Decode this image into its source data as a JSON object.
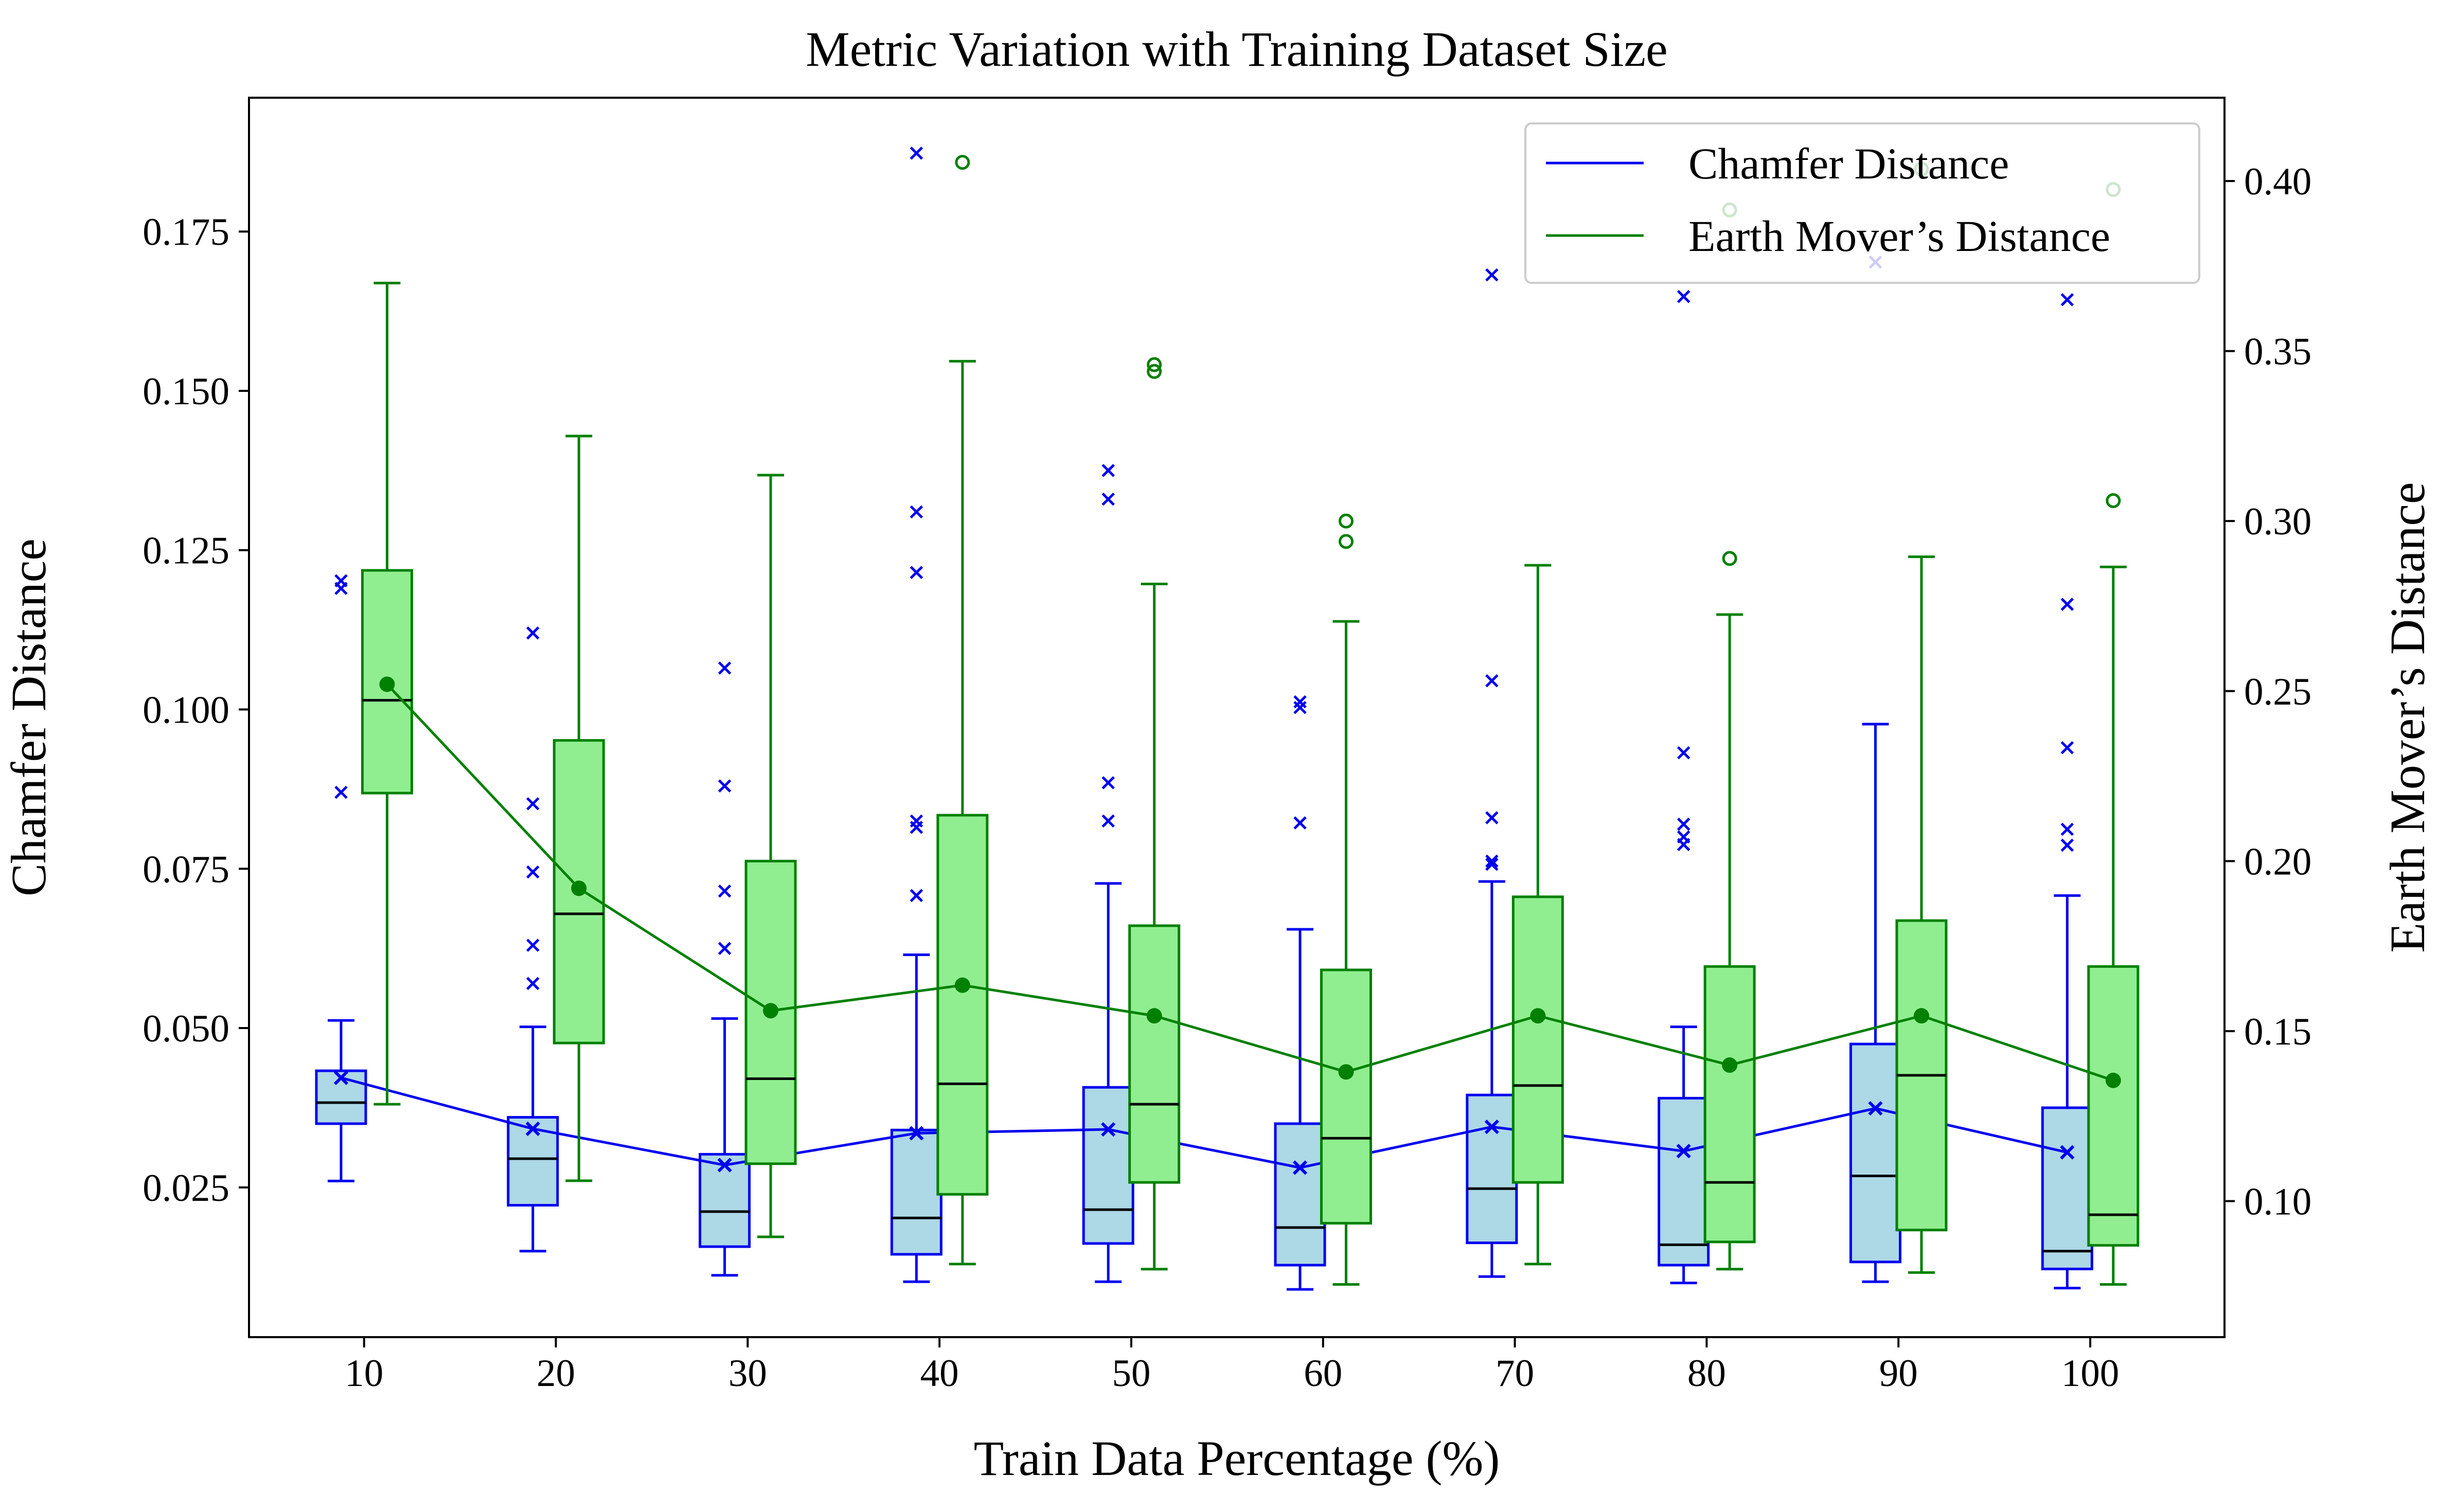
{
  "chart_data": {
    "type": "box",
    "title": "Metric Variation with Training Dataset Size",
    "xlabel": "Train Data Percentage (%)",
    "ylabel_left": "Chamfer Distance",
    "ylabel_right": "Earth Mover’s Distance",
    "x_ticks": [
      10,
      20,
      30,
      40,
      50,
      60,
      70,
      80,
      90,
      100
    ],
    "xlim": [
      4,
      107
    ],
    "ylim_left": [
      0.0015,
      0.196
    ],
    "ylim_right": [
      0.06,
      0.4245
    ],
    "y_ticks_left": [
      "0.025",
      "0.050",
      "0.075",
      "0.100",
      "0.125",
      "0.150",
      "0.175"
    ],
    "y_ticks_right": [
      "0.10",
      "0.15",
      "0.20",
      "0.25",
      "0.30",
      "0.35",
      "0.40"
    ],
    "legend_position": "top-right",
    "series": [
      {
        "name": "Chamfer Distance",
        "axis": "left",
        "color": "#0000ee",
        "fill": "#add8e6",
        "marker": "x",
        "offset": -1.2,
        "boxes": [
          {
            "whislo": 0.026,
            "q1": 0.035,
            "med": 0.0383,
            "q3": 0.0433,
            "whishi": 0.0512,
            "mean": 0.0422,
            "fliers": [
              0.1202,
              0.119,
              0.087
            ]
          },
          {
            "whislo": 0.015,
            "q1": 0.0222,
            "med": 0.0295,
            "q3": 0.036,
            "whishi": 0.0502,
            "mean": 0.0342,
            "fliers": [
              0.112,
              0.0852,
              0.0745,
              0.063,
              0.057
            ]
          },
          {
            "whislo": 0.0112,
            "q1": 0.0157,
            "med": 0.0212,
            "q3": 0.0302,
            "whishi": 0.0515,
            "mean": 0.0285,
            "fliers": [
              0.1065,
              0.088,
              0.0715,
              0.0625
            ]
          },
          {
            "whislo": 0.0102,
            "q1": 0.0145,
            "med": 0.0202,
            "q3": 0.034,
            "whishi": 0.0615,
            "mean": 0.0335,
            "fliers": [
              0.1873,
              0.131,
              0.1215,
              0.0825,
              0.0815,
              0.0708
            ]
          },
          {
            "whislo": 0.0102,
            "q1": 0.0162,
            "med": 0.0215,
            "q3": 0.0407,
            "whishi": 0.0727,
            "mean": 0.0341,
            "fliers": [
              0.1375,
              0.133,
              0.0885,
              0.0825
            ]
          },
          {
            "whislo": 0.009,
            "q1": 0.0128,
            "med": 0.0187,
            "q3": 0.035,
            "whishi": 0.0655,
            "mean": 0.0281,
            "fliers": [
              0.1012,
              0.1003,
              0.0822
            ]
          },
          {
            "whislo": 0.011,
            "q1": 0.0163,
            "med": 0.0248,
            "q3": 0.0395,
            "whishi": 0.073,
            "mean": 0.0345,
            "fliers": [
              0.1682,
              0.1045,
              0.083,
              0.0762,
              0.0757
            ]
          },
          {
            "whislo": 0.01,
            "q1": 0.0128,
            "med": 0.016,
            "q3": 0.039,
            "whishi": 0.0502,
            "mean": 0.0307,
            "fliers": [
              0.1648,
              0.0932,
              0.082,
              0.08,
              0.0788
            ]
          },
          {
            "whislo": 0.0102,
            "q1": 0.0133,
            "med": 0.0268,
            "q3": 0.0475,
            "whishi": 0.0977,
            "mean": 0.0374,
            "fliers": [
              0.1702
            ]
          },
          {
            "whislo": 0.0092,
            "q1": 0.0122,
            "med": 0.015,
            "q3": 0.0375,
            "whishi": 0.0708,
            "mean": 0.0305,
            "fliers": [
              0.1643,
              0.1165,
              0.094,
              0.0812,
              0.0787
            ]
          }
        ]
      },
      {
        "name": "Earth Mover’s Distance",
        "axis": "right",
        "color": "#008000",
        "fill": "#90ee90",
        "marker": "o",
        "offset": 1.2,
        "boxes": [
          {
            "whislo": 0.1285,
            "q1": 0.22,
            "med": 0.2473,
            "q3": 0.2855,
            "whishi": 0.37,
            "mean": 0.252,
            "fliers": []
          },
          {
            "whislo": 0.106,
            "q1": 0.1465,
            "med": 0.1845,
            "q3": 0.2355,
            "whishi": 0.325,
            "mean": 0.192,
            "fliers": []
          },
          {
            "whislo": 0.0895,
            "q1": 0.111,
            "med": 0.136,
            "q3": 0.2,
            "whishi": 0.3135,
            "mean": 0.156,
            "fliers": []
          },
          {
            "whislo": 0.0815,
            "q1": 0.102,
            "med": 0.1345,
            "q3": 0.2135,
            "whishi": 0.347,
            "mean": 0.1635,
            "fliers": [
              0.4055
            ]
          },
          {
            "whislo": 0.08,
            "q1": 0.1055,
            "med": 0.1285,
            "q3": 0.181,
            "whishi": 0.2815,
            "mean": 0.1545,
            "fliers": [
              0.346,
              0.344
            ]
          },
          {
            "whislo": 0.0755,
            "q1": 0.0935,
            "med": 0.1185,
            "q3": 0.168,
            "whishi": 0.2705,
            "mean": 0.138,
            "fliers": [
              0.3,
              0.294
            ]
          },
          {
            "whislo": 0.0815,
            "q1": 0.1055,
            "med": 0.134,
            "q3": 0.1895,
            "whishi": 0.287,
            "mean": 0.1545,
            "fliers": []
          },
          {
            "whislo": 0.08,
            "q1": 0.088,
            "med": 0.1055,
            "q3": 0.169,
            "whishi": 0.2725,
            "mean": 0.14,
            "fliers": [
              0.3915,
              0.289
            ]
          },
          {
            "whislo": 0.079,
            "q1": 0.0915,
            "med": 0.137,
            "q3": 0.1825,
            "whishi": 0.2895,
            "mean": 0.1545,
            "fliers": [
              0.4035
            ]
          },
          {
            "whislo": 0.0755,
            "q1": 0.087,
            "med": 0.096,
            "q3": 0.169,
            "whishi": 0.2865,
            "mean": 0.1355,
            "fliers": [
              0.3975,
              0.306
            ]
          }
        ]
      }
    ]
  }
}
